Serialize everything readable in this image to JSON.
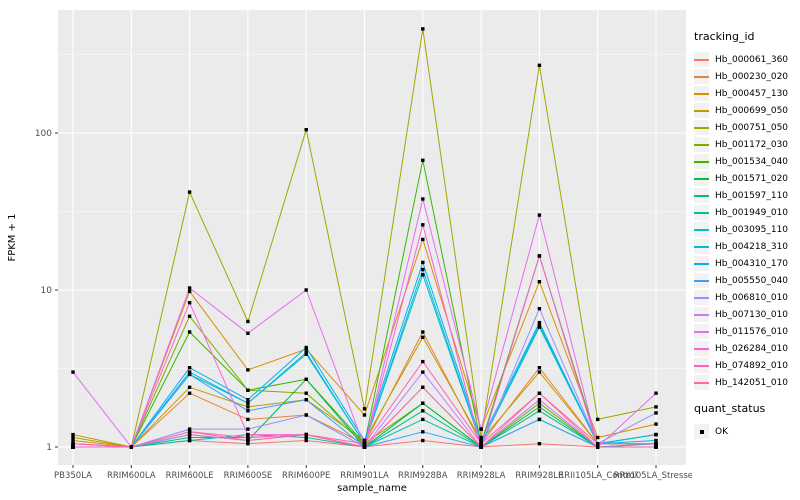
{
  "figure": {
    "y_axis_title": "FPKM + 1",
    "x_axis_title": "sample_name",
    "legend": {
      "tracking_title": "tracking_id",
      "quant_title": "quant_status",
      "quant_ok_label": "OK"
    },
    "colors": {
      "panel_bg": "#EBEBEB",
      "grid_major": "#FFFFFF",
      "grid_minor": "#F7F7F7",
      "tick_text": "#4D4D4D",
      "axis_title_text": "#000000",
      "legend_key_bg": "#F2F2F2",
      "point": "#000000"
    }
  },
  "chart_data": {
    "type": "line",
    "title": "",
    "xlabel": "sample_name",
    "ylabel": "FPKM + 1",
    "y_scale": "log10",
    "ylim": [
      0.77,
      610
    ],
    "y_ticks": [
      1,
      10,
      100
    ],
    "y_minor_ticks": [
      3.162,
      31.62,
      316.2
    ],
    "grid": true,
    "legend_position": "right",
    "point_marker": "filled-black-square",
    "quant_status_label": "OK",
    "categories": [
      "PB350LA",
      "RRIM600LA",
      "RRIM600LE",
      "RRIM600SE",
      "RRIM600PE",
      "RRIM901LA",
      "RRIM928BA",
      "RRIM928LA",
      "RRIM928LE",
      "RRII105LA_Control",
      "RRII105LA_Stressed"
    ],
    "series": [
      {
        "name": "Hb_000061_360",
        "color": "#F8766D",
        "values": [
          1.05,
          1,
          1.1,
          1.05,
          1.1,
          1,
          1.1,
          1,
          1.05,
          1,
          1
        ]
      },
      {
        "name": "Hb_000230_020",
        "color": "#EA8331",
        "values": [
          1,
          1,
          2.2,
          1.5,
          1.6,
          1.05,
          5.4,
          1.05,
          3.2,
          1.05,
          1.05
        ]
      },
      {
        "name": "Hb_000457_130",
        "color": "#D89000",
        "values": [
          1.1,
          1,
          9.8,
          3.1,
          4.2,
          1.6,
          21,
          1.3,
          11.3,
          1.15,
          1.4
        ]
      },
      {
        "name": "Hb_000699_050",
        "color": "#C09B00",
        "values": [
          1.2,
          1,
          2.4,
          1.8,
          2,
          1.1,
          5,
          1.1,
          3,
          1.05,
          1.2
        ]
      },
      {
        "name": "Hb_000751_050",
        "color": "#A3A500",
        "values": [
          1.15,
          1,
          42,
          6.3,
          105,
          1.75,
          460,
          1.15,
          270,
          1.5,
          1.8
        ]
      },
      {
        "name": "Hb_001172_030",
        "color": "#7CAE00",
        "values": [
          1,
          1,
          6.8,
          2.3,
          2.2,
          1.05,
          1.9,
          1,
          1.9,
          1,
          1.05
        ]
      },
      {
        "name": "Hb_001534_040",
        "color": "#39B600",
        "values": [
          1,
          1,
          5.4,
          2.3,
          2.7,
          1.05,
          67,
          1.05,
          16.5,
          1.05,
          1.05
        ]
      },
      {
        "name": "Hb_001571_020",
        "color": "#00BB4E",
        "values": [
          1,
          1,
          1.2,
          1.1,
          2.7,
          1,
          1.9,
          1,
          1.8,
          1,
          1
        ]
      },
      {
        "name": "Hb_001597_110",
        "color": "#00BF7D",
        "values": [
          1,
          1,
          1.15,
          1.15,
          1.2,
          1,
          1.7,
          1,
          1.7,
          1,
          1
        ]
      },
      {
        "name": "Hb_001949_010",
        "color": "#00C1A3",
        "values": [
          1,
          1,
          1.1,
          1.2,
          1.15,
          1,
          1.5,
          1,
          1.5,
          1,
          1
        ]
      },
      {
        "name": "Hb_003095_110",
        "color": "#00BFC4",
        "values": [
          1,
          1,
          2.9,
          1.9,
          3.9,
          1.05,
          12.5,
          1.05,
          5.8,
          1.05,
          1.2
        ]
      },
      {
        "name": "Hb_004218_310",
        "color": "#00BAE0",
        "values": [
          1,
          1,
          3,
          1.9,
          4,
          1.05,
          13.5,
          1.05,
          6,
          1.05,
          1.2
        ]
      },
      {
        "name": "Hb_004310_170",
        "color": "#00B0F6",
        "values": [
          1,
          1,
          3.2,
          2,
          4.3,
          1.1,
          15,
          1.1,
          6.2,
          1.05,
          1.1
        ]
      },
      {
        "name": "Hb_005550_040",
        "color": "#35A2FF",
        "values": [
          1,
          1,
          2.9,
          1.7,
          2,
          1,
          1.25,
          1,
          1.5,
          1,
          1.05
        ]
      },
      {
        "name": "Hb_006810_010",
        "color": "#9590FF",
        "values": [
          1,
          1,
          1.3,
          1.3,
          1.6,
          1,
          2.4,
          1,
          7.6,
          1.05,
          1.65
        ]
      },
      {
        "name": "Hb_007130_010",
        "color": "#C77CFF",
        "values": [
          1,
          1,
          1.2,
          1.1,
          1.2,
          1,
          3,
          1,
          2,
          1,
          1
        ]
      },
      {
        "name": "Hb_011576_010",
        "color": "#E76BF3",
        "values": [
          3,
          1,
          10.3,
          5.3,
          10,
          1,
          38,
          1.3,
          30,
          1,
          2.2
        ]
      },
      {
        "name": "Hb_026284_010",
        "color": "#FA62DB",
        "values": [
          1,
          1,
          8.3,
          1.2,
          1.2,
          1,
          26,
          1,
          16.5,
          1,
          1
        ]
      },
      {
        "name": "Hb_074892_010",
        "color": "#FF62BC",
        "values": [
          1.05,
          1,
          1.25,
          1.15,
          1.2,
          1.05,
          3.5,
          1.05,
          2.2,
          1.05,
          1.05
        ]
      },
      {
        "name": "Hb_142051_010",
        "color": "#FF6A98",
        "values": [
          1.05,
          1,
          1.25,
          1.1,
          1.2,
          1,
          2.4,
          1,
          2.2,
          1,
          1
        ]
      }
    ]
  }
}
